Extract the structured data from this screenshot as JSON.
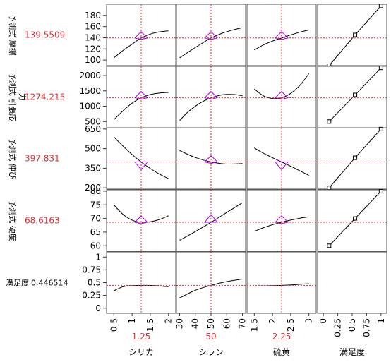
{
  "colors": {
    "curve": "#000000",
    "crosshair": "#e0303a",
    "marker": "#b000d8",
    "value": "#e0303a",
    "grid_border": "#555555",
    "panel_bg": "#ffffff"
  },
  "chart_data": {
    "type": "line",
    "title": "",
    "rows": [
      {
        "label": "予測式 摩擦",
        "label_lines": [
          "予測式 摩擦"
        ],
        "value": "139.5509",
        "ylim": [
          90,
          200
        ],
        "yticks": [
          100,
          120,
          140,
          160,
          180
        ],
        "current": 139.5509
      },
      {
        "label": "予測式 引張応力",
        "label_lines": [
          "予測式 引張応",
          "力"
        ],
        "value": "1274.215",
        "ylim": [
          300,
          2300
        ],
        "yticks": [
          500,
          1000,
          1500,
          2000
        ],
        "current": 1274.215
      },
      {
        "label": "予測式 伸び",
        "label_lines": [
          "予測式 伸び"
        ],
        "value": "397.831",
        "ylim": [
          190,
          660
        ],
        "yticks": [
          200,
          350,
          500,
          650
        ],
        "current": 397.831
      },
      {
        "label": "予測式 硬度",
        "label_lines": [
          "予測式 硬度"
        ],
        "value": "68.6163",
        "ylim": [
          58,
          80.5
        ],
        "yticks": [
          60,
          65,
          70,
          75,
          80
        ],
        "current": 68.6163
      },
      {
        "label": "満足度",
        "label_lines": [
          "満足度"
        ],
        "value": "0.446514",
        "ylim": [
          -0.1,
          1.1
        ],
        "yticks": [
          0,
          0.25,
          0.5,
          0.75,
          1
        ],
        "current": 0.446514
      }
    ],
    "columns": [
      {
        "name": "シリカ",
        "value": "1.25",
        "current": 1.25,
        "xlim": [
          0.3,
          2.2
        ],
        "xticks": [
          "0.5",
          "1",
          "1.5",
          "2"
        ],
        "xtick_values": [
          0.5,
          1,
          1.5,
          2
        ]
      },
      {
        "name": "シラン",
        "value": "50",
        "current": 50,
        "xlim": [
          28,
          72
        ],
        "xticks": [
          "30",
          "40",
          "50",
          "60",
          "70"
        ],
        "xtick_values": [
          30,
          40,
          50,
          60,
          70
        ]
      },
      {
        "name": "硫黄",
        "value": "2.25",
        "current": 2.25,
        "xlim": [
          1.3,
          3.2
        ],
        "xticks": [
          "1.5",
          "2",
          "2.5",
          "3"
        ],
        "xtick_values": [
          1.5,
          2,
          2.5,
          3
        ]
      },
      {
        "name": "満足度",
        "value": "",
        "current": 0.446514,
        "xlim": [
          -0.1,
          1.1
        ],
        "xticks": [
          "0",
          "0.25",
          "0.5",
          "0.75",
          "1"
        ],
        "xtick_values": [
          0,
          0.25,
          0.5,
          0.75,
          1
        ]
      }
    ],
    "series": [
      {
        "row": 0,
        "col": 0,
        "x": [
          0.5,
          0.75,
          1.0,
          1.25,
          1.5,
          1.75,
          2.0
        ],
        "y": [
          104,
          117,
          128.5,
          139.5,
          146.5,
          150.5,
          152.5
        ]
      },
      {
        "row": 0,
        "col": 1,
        "x": [
          30,
          37,
          44,
          50,
          57,
          64,
          70
        ],
        "y": [
          104,
          117,
          129.5,
          139.5,
          148,
          154,
          158
        ]
      },
      {
        "row": 0,
        "col": 2,
        "x": [
          1.5,
          1.75,
          2.0,
          2.25,
          2.5,
          2.75,
          3.0
        ],
        "y": [
          118,
          127,
          134,
          139.5,
          145,
          150,
          154
        ]
      },
      {
        "row": 0,
        "col": 3,
        "x": [
          0.1,
          0.55,
          1.0
        ],
        "y": [
          90,
          145,
          197
        ],
        "markers": true
      },
      {
        "row": 1,
        "col": 0,
        "x": [
          0.5,
          0.75,
          1.0,
          1.25,
          1.5,
          1.75,
          2.0
        ],
        "y": [
          560,
          850,
          1100,
          1274,
          1380,
          1430,
          1450
        ]
      },
      {
        "row": 1,
        "col": 1,
        "x": [
          30,
          35,
          40,
          45,
          50,
          55,
          60,
          65,
          70
        ],
        "y": [
          530,
          800,
          1000,
          1160,
          1274,
          1350,
          1385,
          1380,
          1340
        ]
      },
      {
        "row": 1,
        "col": 2,
        "x": [
          1.5,
          1.75,
          2.0,
          2.25,
          2.5,
          2.75,
          3.0
        ],
        "y": [
          1560,
          1340,
          1250,
          1274,
          1420,
          1680,
          2060
        ]
      },
      {
        "row": 1,
        "col": 3,
        "x": [
          0.1,
          0.55,
          1.0
        ],
        "y": [
          500,
          1370,
          2250
        ],
        "markers": true
      },
      {
        "row": 2,
        "col": 0,
        "x": [
          0.5,
          0.75,
          1.0,
          1.25,
          1.5,
          1.75,
          2.0
        ],
        "y": [
          590,
          520,
          455,
          398,
          348,
          305,
          270
        ]
      },
      {
        "row": 2,
        "col": 1,
        "x": [
          30,
          40,
          50,
          60,
          70
        ],
        "y": [
          485,
          432,
          398,
          382,
          386
        ]
      },
      {
        "row": 2,
        "col": 2,
        "x": [
          1.5,
          1.75,
          2.0,
          2.25,
          2.5,
          2.75,
          3.0
        ],
        "y": [
          505,
          465,
          430,
          398,
          365,
          330,
          295
        ]
      },
      {
        "row": 2,
        "col": 3,
        "x": [
          0.1,
          0.55,
          1.0
        ],
        "y": [
          200,
          430,
          650
        ],
        "markers": true
      },
      {
        "row": 3,
        "col": 0,
        "x": [
          0.5,
          0.75,
          1.0,
          1.25,
          1.5,
          1.75,
          2.0
        ],
        "y": [
          75,
          71.5,
          69.4,
          68.6,
          68.8,
          69.6,
          71
        ]
      },
      {
        "row": 3,
        "col": 1,
        "x": [
          30,
          40,
          50,
          60,
          70
        ],
        "y": [
          62,
          65.2,
          68.6,
          72.2,
          75.8
        ]
      },
      {
        "row": 3,
        "col": 2,
        "x": [
          1.5,
          1.75,
          2.0,
          2.25,
          2.5,
          2.75,
          3.0
        ],
        "y": [
          65.3,
          66.6,
          67.7,
          68.6,
          69.4,
          70.1,
          70.6
        ]
      },
      {
        "row": 3,
        "col": 3,
        "x": [
          0.1,
          0.55,
          1.0
        ],
        "y": [
          60,
          70,
          80
        ],
        "markers": true
      },
      {
        "row": 4,
        "col": 0,
        "x": [
          0.5,
          0.75,
          1.0,
          1.25,
          1.5,
          1.75,
          2.0
        ],
        "y": [
          0.34,
          0.42,
          0.44,
          0.447,
          0.445,
          0.435,
          0.42
        ]
      },
      {
        "row": 4,
        "col": 1,
        "x": [
          30,
          40,
          50,
          60,
          70
        ],
        "y": [
          0.2,
          0.35,
          0.447,
          0.52,
          0.57
        ]
      },
      {
        "row": 4,
        "col": 2,
        "x": [
          1.5,
          1.75,
          2.0,
          2.25,
          2.5,
          2.75,
          3.0
        ],
        "y": [
          0.43,
          0.435,
          0.44,
          0.447,
          0.455,
          0.468,
          0.48
        ]
      }
    ]
  }
}
